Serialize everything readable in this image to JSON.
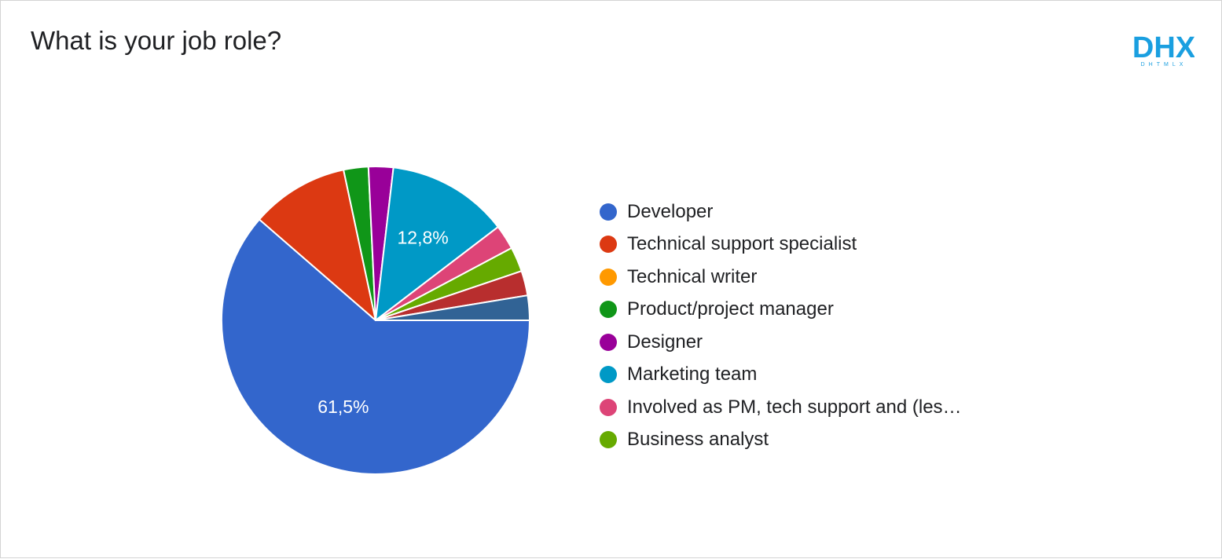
{
  "title": "What is your job role?",
  "logo": {
    "text": "DHX",
    "subtext": "DHTMLX",
    "color": "#1a9fe0"
  },
  "chart_data": {
    "type": "pie",
    "title": "What is your job role?",
    "start": "3 o'clock, clockwise",
    "legend_position": "right",
    "slices": [
      {
        "label": "Developer",
        "value": 61.5,
        "color": "#3366cc",
        "data_label": "61,5%"
      },
      {
        "label": "Technical support specialist",
        "value": 10.3,
        "color": "#dc3912",
        "data_label": ""
      },
      {
        "label": "Technical writer",
        "value": 0,
        "color": "#ff9900",
        "data_label": ""
      },
      {
        "label": "Product/project manager",
        "value": 2.6,
        "color": "#109618",
        "data_label": ""
      },
      {
        "label": "Designer",
        "value": 2.6,
        "color": "#990099",
        "data_label": ""
      },
      {
        "label": "Marketing team",
        "value": 12.8,
        "color": "#0099c6",
        "data_label": "12,8%"
      },
      {
        "label": "Involved as PM, tech support and (les…",
        "value": 2.6,
        "color": "#dd4477",
        "data_label": ""
      },
      {
        "label": "Business analyst",
        "value": 2.6,
        "color": "#66aa00",
        "data_label": ""
      },
      {
        "label": "",
        "value": 2.6,
        "color": "#b82e2e",
        "data_label": ""
      },
      {
        "label": "",
        "value": 2.6,
        "color": "#316395",
        "data_label": ""
      }
    ]
  }
}
